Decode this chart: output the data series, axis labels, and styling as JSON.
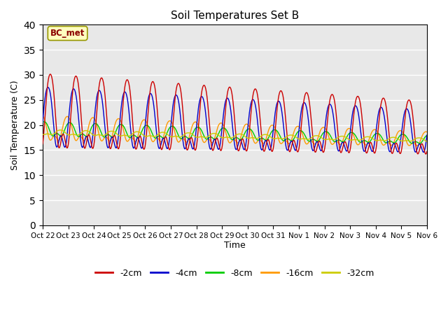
{
  "title": "Soil Temperatures Set B",
  "xlabel": "Time",
  "ylabel": "Soil Temperature (C)",
  "annotation": "BC_met",
  "ylim": [
    0,
    40
  ],
  "yticks": [
    0,
    5,
    10,
    15,
    20,
    25,
    30,
    35,
    40
  ],
  "xtick_labels": [
    "Oct 22",
    "Oct 23",
    "Oct 24",
    "Oct 25",
    "Oct 26",
    "Oct 27",
    "Oct 28",
    "Oct 29",
    "Oct 30",
    "Oct 31",
    "Nov 1",
    "Nov 2",
    "Nov 3",
    "Nov 4",
    "Nov 5",
    "Nov 6"
  ],
  "colors": {
    "-2cm": "#cc0000",
    "-4cm": "#0000cc",
    "-8cm": "#00cc00",
    "-16cm": "#ff9900",
    "-32cm": "#cccc00"
  },
  "legend_labels": [
    "-2cm",
    "-4cm",
    "-8cm",
    "-16cm",
    "-32cm"
  ],
  "background_color": "#e8e8e8",
  "figure_bg": "#ffffff",
  "n_days": 15,
  "points_per_day": 240
}
